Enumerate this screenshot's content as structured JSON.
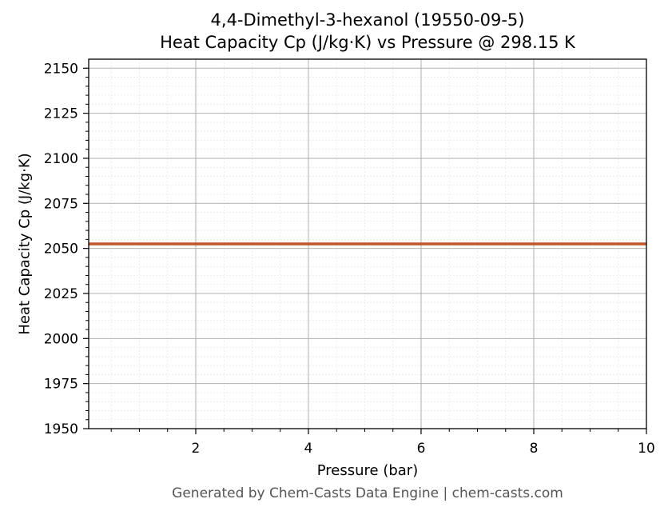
{
  "chart_data": {
    "type": "line",
    "title": "4,4-Dimethyl-3-hexanol (19550-09-5)",
    "subtitle": "Heat Capacity Cp (J/kg·K) vs Pressure @ 298.15 K",
    "xlabel": "Pressure (bar)",
    "ylabel": "Heat Capacity Cp (J/kg·K)",
    "xlim": [
      0.1,
      10
    ],
    "ylim": [
      1950,
      2155
    ],
    "xticks": [
      2,
      4,
      6,
      8,
      10
    ],
    "yticks": [
      1950,
      1975,
      2000,
      2025,
      2050,
      2075,
      2100,
      2125,
      2150
    ],
    "grid": true,
    "series": [
      {
        "color": "#c0562a",
        "x": [
          0.1,
          1,
          2,
          3,
          4,
          5,
          6,
          7,
          8,
          9,
          10
        ],
        "y": [
          2052.5,
          2052.5,
          2052.5,
          2052.5,
          2052.5,
          2052.5,
          2052.5,
          2052.5,
          2052.5,
          2052.5,
          2052.5
        ]
      }
    ]
  },
  "footer": "Generated by Chem-Casts Data Engine | chem-casts.com"
}
